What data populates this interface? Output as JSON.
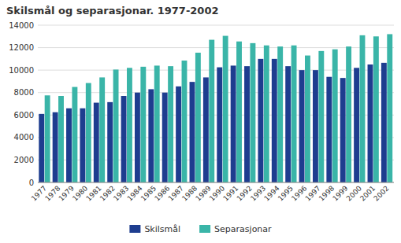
{
  "chart_data": {
    "type": "bar",
    "title": "Skilsmål og separasjonar. 1977-2002",
    "categories": [
      "1977",
      "1978",
      "1979",
      "1980",
      "1981",
      "1982",
      "1983",
      "1984",
      "1985",
      "1986",
      "1987",
      "1988",
      "1989",
      "1990",
      "1991",
      "1992",
      "1993",
      "1994",
      "1995",
      "1996",
      "1997",
      "1998",
      "1999",
      "2000",
      "2001",
      "2002"
    ],
    "series": [
      {
        "name": "Skilsmål",
        "color": "#1e3d8f",
        "values": [
          6100,
          6250,
          6600,
          6600,
          7100,
          7150,
          7700,
          8000,
          8300,
          8000,
          8550,
          8950,
          9350,
          10250,
          10400,
          10350,
          11000,
          11000,
          10350,
          10000,
          10000,
          9400,
          9300,
          10200,
          10500,
          10650
        ]
      },
      {
        "name": "Separasjonar",
        "color": "#3ab5a8",
        "values": [
          7750,
          7700,
          8500,
          8850,
          9350,
          10050,
          10200,
          10300,
          10400,
          10350,
          10850,
          11550,
          12700,
          13050,
          12550,
          12400,
          12200,
          12100,
          12200,
          11300,
          11700,
          11850,
          12100,
          13100,
          13000,
          13200
        ]
      }
    ],
    "ylim": [
      0,
      14000
    ],
    "yticks": [
      0,
      2000,
      4000,
      6000,
      8000,
      10000,
      12000,
      14000
    ],
    "grid": true,
    "legend": "bottom"
  }
}
